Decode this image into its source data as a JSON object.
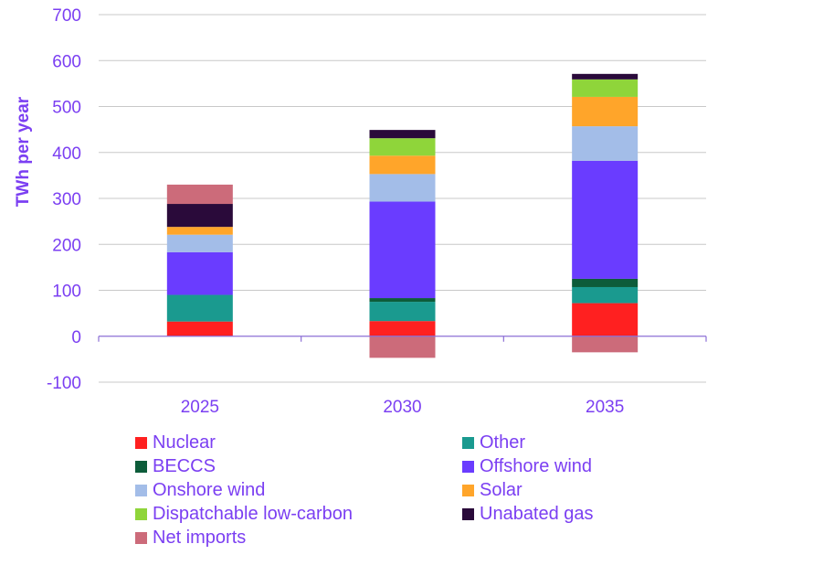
{
  "colors": {
    "text": "#7b3ff2",
    "grid": "#c8c8c8",
    "zero_line": "#8c6fd6"
  },
  "chart_data": {
    "type": "bar",
    "stacked": true,
    "title": "",
    "xlabel": "",
    "ylabel": "TWh per year",
    "ylim": [
      -100,
      700
    ],
    "yticks": [
      -100,
      0,
      100,
      200,
      300,
      400,
      500,
      600,
      700
    ],
    "grid": true,
    "legend_position": "bottom",
    "categories": [
      "2025",
      "2030",
      "2035"
    ],
    "series": [
      {
        "name": "Nuclear",
        "color": "#ff2020",
        "values": [
          32,
          33,
          72
        ]
      },
      {
        "name": "Other",
        "color": "#1a9a8f",
        "values": [
          58,
          42,
          35
        ]
      },
      {
        "name": "BECCS",
        "color": "#0d5c3a",
        "values": [
          0,
          8,
          18
        ]
      },
      {
        "name": "Offshore wind",
        "color": "#6a3cff",
        "values": [
          93,
          210,
          257
        ]
      },
      {
        "name": "Onshore wind",
        "color": "#a3bde8",
        "values": [
          38,
          60,
          75
        ]
      },
      {
        "name": "Solar",
        "color": "#ffa52a",
        "values": [
          17,
          40,
          64
        ]
      },
      {
        "name": "Dispatchable low-carbon",
        "color": "#8fd53a",
        "values": [
          0,
          38,
          38
        ]
      },
      {
        "name": "Unabated gas",
        "color": "#2a0a3a",
        "values": [
          50,
          18,
          12
        ]
      },
      {
        "name": "Net imports",
        "color": "#cc6b7a",
        "values": [
          42,
          -47,
          -35
        ]
      }
    ]
  }
}
